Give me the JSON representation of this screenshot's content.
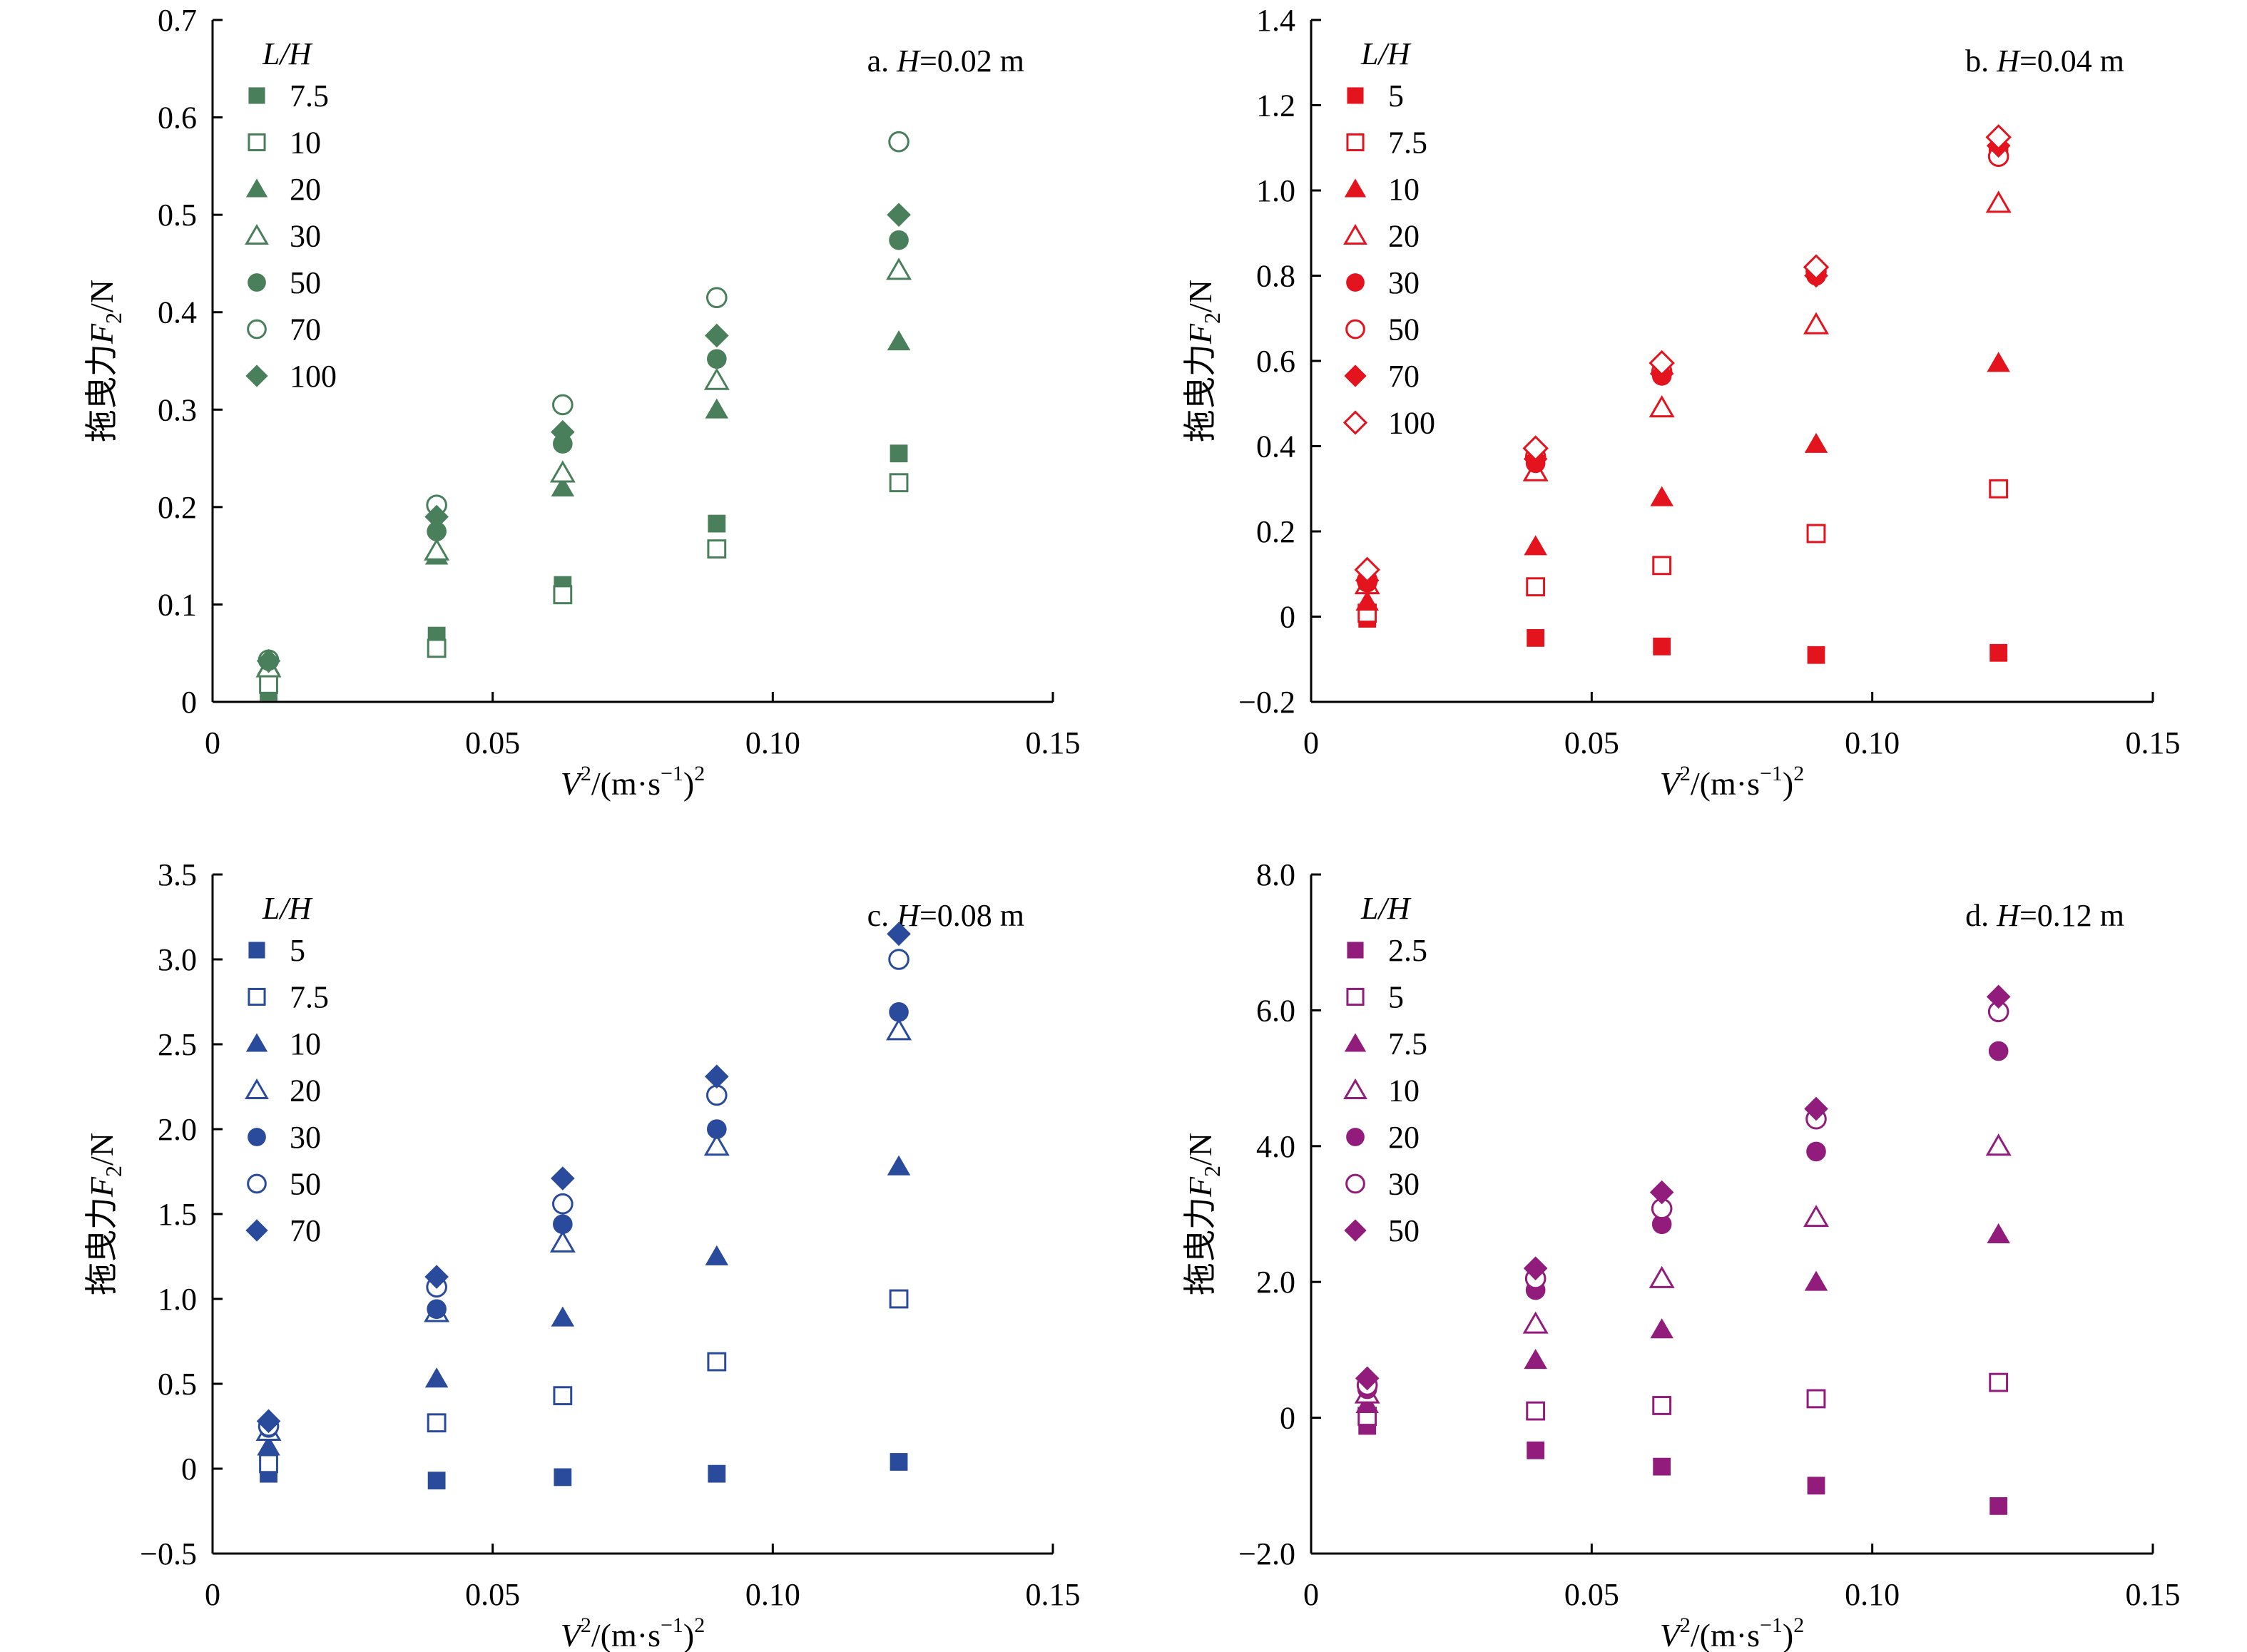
{
  "chart_data": [
    {
      "type": "scatter",
      "panel_label": "a.",
      "panel_var": "H",
      "panel_value": "=0.02 m",
      "color": "#4a7f5b",
      "legend_title": "L/H",
      "ylabel_prefix": "拖曳力",
      "ylabel_var": "F",
      "ylabel_sub": "2",
      "ylabel_unit": "/N",
      "xlabel_var": "V",
      "xlabel_rest": "/(m·s",
      "xlabel_exp": "−1",
      "xlabel_close": ")",
      "xlabel_sup": "2",
      "xlim": [
        0,
        0.15
      ],
      "ylim": [
        0,
        0.7
      ],
      "xticks": [
        0,
        0.05,
        0.1,
        0.15
      ],
      "xtick_labels": [
        "0",
        "0.05",
        "0.10",
        "0.15"
      ],
      "yticks": [
        0,
        0.1,
        0.2,
        0.3,
        0.4,
        0.5,
        0.6,
        0.7
      ],
      "ytick_labels": [
        "0",
        "0.1",
        "0.2",
        "0.3",
        "0.4",
        "0.5",
        "0.6",
        "0.7"
      ],
      "x": [
        0.01,
        0.04,
        0.0625,
        0.09,
        0.1225
      ],
      "series": [
        {
          "name": "7.5",
          "marker": "square",
          "filled": true,
          "values": [
            0.01,
            0.068,
            0.12,
            0.183,
            0.255
          ]
        },
        {
          "name": "10",
          "marker": "square",
          "filled": false,
          "values": [
            0.018,
            0.055,
            0.11,
            0.157,
            0.225
          ]
        },
        {
          "name": "20",
          "marker": "triangle",
          "filled": true,
          "values": [
            0.037,
            0.15,
            0.22,
            0.3,
            0.37
          ]
        },
        {
          "name": "30",
          "marker": "triangle",
          "filled": false,
          "values": [
            0.035,
            0.155,
            0.235,
            0.33,
            0.443
          ]
        },
        {
          "name": "50",
          "marker": "circle",
          "filled": true,
          "values": [
            0.042,
            0.175,
            0.265,
            0.352,
            0.474
          ]
        },
        {
          "name": "70",
          "marker": "circle",
          "filled": false,
          "values": [
            0.043,
            0.202,
            0.305,
            0.415,
            0.575
          ]
        },
        {
          "name": "100",
          "marker": "diamond",
          "filled": true,
          "values": [
            0.042,
            0.19,
            0.277,
            0.376,
            0.5
          ]
        }
      ]
    },
    {
      "type": "scatter",
      "panel_label": "b.",
      "panel_var": "H",
      "panel_value": "=0.04 m",
      "color": "#e3141e",
      "legend_title": "L/H",
      "ylabel_prefix": "拖曳力",
      "ylabel_var": "F",
      "ylabel_sub": "2",
      "ylabel_unit": "/N",
      "xlabel_var": "V",
      "xlabel_rest": "/(m·s",
      "xlabel_exp": "−1",
      "xlabel_close": ")",
      "xlabel_sup": "2",
      "xlim": [
        0,
        0.15
      ],
      "ylim": [
        -0.2,
        1.4
      ],
      "xticks": [
        0,
        0.05,
        0.1,
        0.15
      ],
      "xtick_labels": [
        "0",
        "0.05",
        "0.10",
        "0.15"
      ],
      "yticks": [
        -0.2,
        0,
        0.2,
        0.4,
        0.6,
        0.8,
        1.0,
        1.2,
        1.4
      ],
      "ytick_labels": [
        "−0.2",
        "0",
        "0.2",
        "0.4",
        "0.6",
        "0.8",
        "1.0",
        "1.2",
        "1.4"
      ],
      "x": [
        0.01,
        0.04,
        0.0625,
        0.09,
        0.1225
      ],
      "series": [
        {
          "name": "5",
          "marker": "square",
          "filled": true,
          "values": [
            -0.005,
            -0.05,
            -0.07,
            -0.09,
            -0.085
          ]
        },
        {
          "name": "7.5",
          "marker": "square",
          "filled": false,
          "values": [
            0.008,
            0.07,
            0.12,
            0.195,
            0.3
          ]
        },
        {
          "name": "10",
          "marker": "triangle",
          "filled": true,
          "values": [
            0.035,
            0.165,
            0.28,
            0.405,
            0.595
          ]
        },
        {
          "name": "20",
          "marker": "triangle",
          "filled": false,
          "values": [
            0.075,
            0.34,
            0.49,
            0.685,
            0.97
          ]
        },
        {
          "name": "30",
          "marker": "circle",
          "filled": true,
          "values": [
            0.08,
            0.36,
            0.565,
            0.8,
            1.095
          ]
        },
        {
          "name": "50",
          "marker": "circle",
          "filled": false,
          "values": [
            0.085,
            0.375,
            0.575,
            0.81,
            1.08
          ]
        },
        {
          "name": "70",
          "marker": "diamond",
          "filled": true,
          "values": [
            0.085,
            0.37,
            0.57,
            0.8,
            1.105
          ]
        },
        {
          "name": "100",
          "marker": "diamond",
          "filled": false,
          "values": [
            0.11,
            0.395,
            0.595,
            0.82,
            1.125
          ]
        }
      ]
    },
    {
      "type": "scatter",
      "panel_label": "c.",
      "panel_var": "H",
      "panel_value": "=0.08 m",
      "color": "#2a4b9b",
      "legend_title": "L/H",
      "ylabel_prefix": "拖曳力",
      "ylabel_var": "F",
      "ylabel_sub": "2",
      "ylabel_unit": "/N",
      "xlabel_var": "V",
      "xlabel_rest": "/(m·s",
      "xlabel_exp": "−1",
      "xlabel_close": ")",
      "xlabel_sup": "2",
      "xlim": [
        0,
        0.15
      ],
      "ylim": [
        -0.5,
        3.5
      ],
      "xticks": [
        0,
        0.05,
        0.1,
        0.15
      ],
      "xtick_labels": [
        "0",
        "0.05",
        "0.10",
        "0.15"
      ],
      "yticks": [
        -0.5,
        0,
        0.5,
        1.0,
        1.5,
        2.0,
        2.5,
        3.0,
        3.5
      ],
      "ytick_labels": [
        "−0.5",
        "0",
        "0.5",
        "1.0",
        "1.5",
        "2.0",
        "2.5",
        "3.0",
        "3.5"
      ],
      "x": [
        0.01,
        0.04,
        0.0625,
        0.09,
        0.1225
      ],
      "series": [
        {
          "name": "5",
          "marker": "square",
          "filled": true,
          "values": [
            -0.03,
            -0.07,
            -0.05,
            -0.03,
            0.04
          ]
        },
        {
          "name": "7.5",
          "marker": "square",
          "filled": false,
          "values": [
            0.03,
            0.27,
            0.43,
            0.63,
            1.0
          ]
        },
        {
          "name": "10",
          "marker": "triangle",
          "filled": true,
          "values": [
            0.13,
            0.53,
            0.89,
            1.25,
            1.78
          ]
        },
        {
          "name": "20",
          "marker": "triangle",
          "filled": false,
          "values": [
            0.22,
            0.92,
            1.33,
            1.9,
            2.58
          ]
        },
        {
          "name": "30",
          "marker": "circle",
          "filled": true,
          "values": [
            0.24,
            0.94,
            1.44,
            2.0,
            2.69
          ]
        },
        {
          "name": "50",
          "marker": "circle",
          "filled": false,
          "values": [
            0.25,
            1.07,
            1.56,
            2.2,
            3.0
          ]
        },
        {
          "name": "70",
          "marker": "diamond",
          "filled": true,
          "values": [
            0.28,
            1.13,
            1.71,
            2.31,
            3.15
          ]
        }
      ]
    },
    {
      "type": "scatter",
      "panel_label": "d.",
      "panel_var": "H",
      "panel_value": "=0.12 m",
      "color": "#911c7c",
      "legend_title": "L/H",
      "ylabel_prefix": "拖曳力",
      "ylabel_var": "F",
      "ylabel_sub": "2",
      "ylabel_unit": "/N",
      "xlabel_var": "V",
      "xlabel_rest": "/(m·s",
      "xlabel_exp": "−1",
      "xlabel_close": ")",
      "xlabel_sup": "2",
      "xlim": [
        0,
        0.15
      ],
      "ylim": [
        -2.0,
        8.0
      ],
      "xticks": [
        0,
        0.05,
        0.1,
        0.15
      ],
      "xtick_labels": [
        "0",
        "0.05",
        "0.10",
        "0.15"
      ],
      "yticks": [
        -2.0,
        0,
        2.0,
        4.0,
        6.0,
        8.0
      ],
      "ytick_labels": [
        "−2.0",
        "0",
        "2.0",
        "4.0",
        "6.0",
        "8.0"
      ],
      "x": [
        0.01,
        0.04,
        0.0625,
        0.09,
        0.1225
      ],
      "series": [
        {
          "name": "2.5",
          "marker": "square",
          "filled": true,
          "values": [
            -0.12,
            -0.48,
            -0.72,
            -1.0,
            -1.3
          ]
        },
        {
          "name": "5",
          "marker": "square",
          "filled": false,
          "values": [
            0.02,
            0.1,
            0.18,
            0.28,
            0.52
          ]
        },
        {
          "name": "7.5",
          "marker": "triangle",
          "filled": true,
          "values": [
            0.2,
            0.85,
            1.3,
            2.0,
            2.7
          ]
        },
        {
          "name": "10",
          "marker": "triangle",
          "filled": false,
          "values": [
            0.35,
            1.38,
            2.05,
            2.95,
            4.0
          ]
        },
        {
          "name": "20",
          "marker": "circle",
          "filled": true,
          "values": [
            0.42,
            1.88,
            2.85,
            3.92,
            5.4
          ]
        },
        {
          "name": "30",
          "marker": "circle",
          "filled": false,
          "values": [
            0.48,
            2.05,
            3.08,
            4.4,
            5.98
          ]
        },
        {
          "name": "50",
          "marker": "diamond",
          "filled": true,
          "values": [
            0.58,
            2.2,
            3.32,
            4.55,
            6.2
          ]
        }
      ]
    }
  ]
}
